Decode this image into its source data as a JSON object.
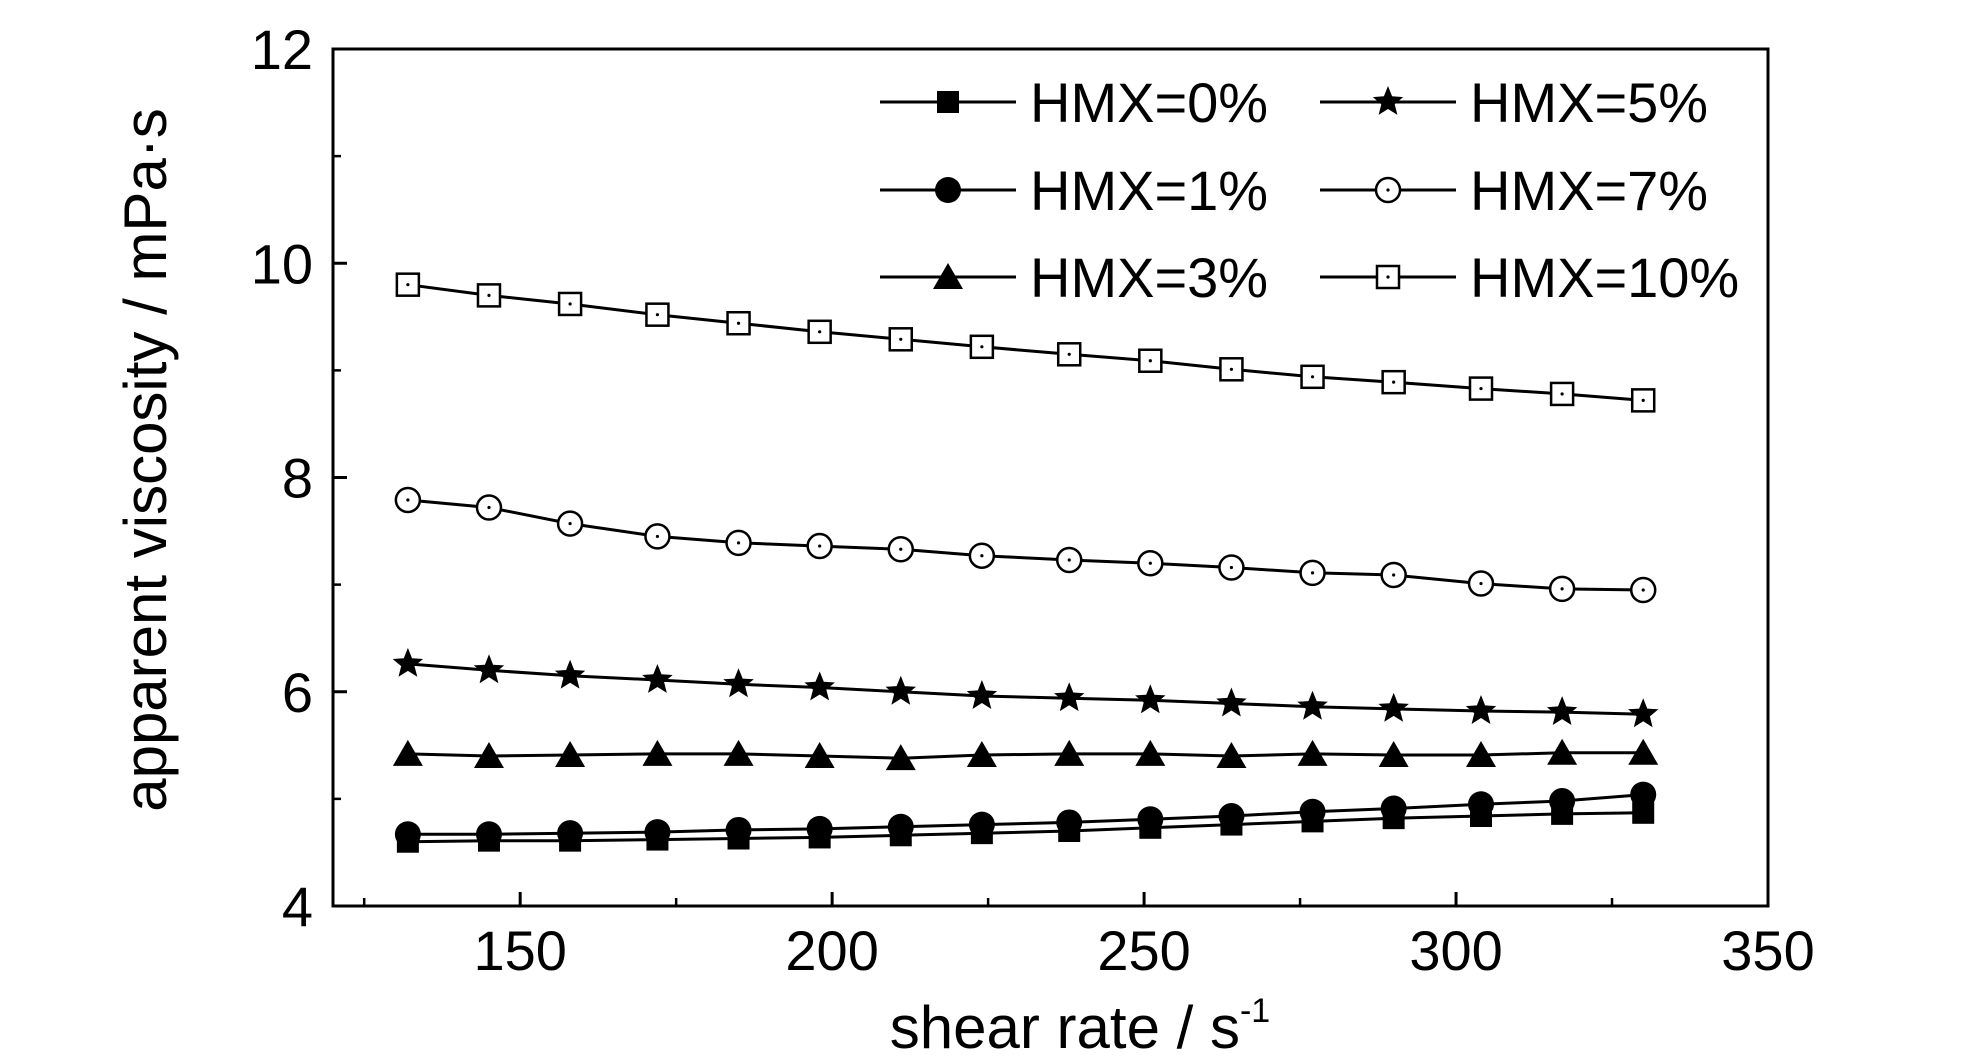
{
  "chart_data": {
    "type": "line",
    "xlabel": "shear rate / s",
    "xlabel_superscript": "-1",
    "ylabel": "apparent viscosity / mPa·s",
    "xlim": [
      120,
      350
    ],
    "ylim": [
      4,
      12
    ],
    "x_ticks": [
      150,
      200,
      250,
      300,
      350
    ],
    "y_ticks": [
      4,
      6,
      8,
      10,
      12
    ],
    "grid": false,
    "legend_position": "top-right",
    "x": [
      132,
      145,
      158,
      172,
      185,
      198,
      211,
      224,
      238,
      251,
      264,
      277,
      290,
      304,
      317,
      330
    ],
    "series": [
      {
        "name": "HMX=0%",
        "marker": "filled-square",
        "values": [
          4.6,
          4.61,
          4.61,
          4.62,
          4.63,
          4.64,
          4.66,
          4.68,
          4.7,
          4.73,
          4.76,
          4.79,
          4.82,
          4.84,
          4.86,
          4.87
        ]
      },
      {
        "name": "HMX=1%",
        "marker": "filled-circle",
        "values": [
          4.67,
          4.67,
          4.68,
          4.69,
          4.71,
          4.72,
          4.74,
          4.76,
          4.78,
          4.81,
          4.84,
          4.88,
          4.91,
          4.95,
          4.98,
          5.04
        ]
      },
      {
        "name": "HMX=3%",
        "marker": "filled-triangle",
        "values": [
          5.42,
          5.4,
          5.41,
          5.42,
          5.42,
          5.4,
          5.38,
          5.41,
          5.42,
          5.42,
          5.4,
          5.42,
          5.41,
          5.41,
          5.43,
          5.43
        ]
      },
      {
        "name": "HMX=5%",
        "marker": "filled-star",
        "values": [
          6.26,
          6.2,
          6.15,
          6.11,
          6.07,
          6.04,
          6.0,
          5.96,
          5.94,
          5.92,
          5.89,
          5.86,
          5.84,
          5.82,
          5.81,
          5.79
        ]
      },
      {
        "name": "HMX=7%",
        "marker": "open-circle-dot",
        "values": [
          7.79,
          7.72,
          7.57,
          7.45,
          7.39,
          7.36,
          7.33,
          7.27,
          7.23,
          7.2,
          7.16,
          7.11,
          7.09,
          7.01,
          6.96,
          6.95
        ]
      },
      {
        "name": "HMX=10%",
        "marker": "open-square-dot",
        "values": [
          9.8,
          9.7,
          9.62,
          9.52,
          9.44,
          9.36,
          9.29,
          9.22,
          9.15,
          9.09,
          9.01,
          8.94,
          8.89,
          8.83,
          8.78,
          8.72
        ]
      }
    ]
  }
}
